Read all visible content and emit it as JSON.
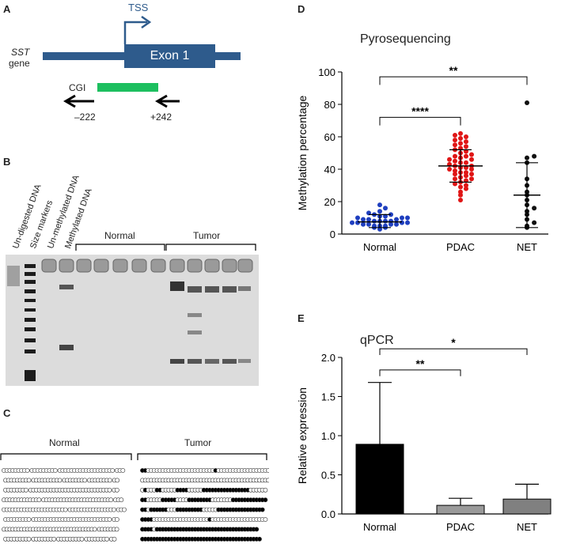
{
  "panel_a": {
    "letter": "A",
    "gene_italic": "SST",
    "gene_word": "gene",
    "tss": "TSS",
    "exon": "Exon 1",
    "cgi": "CGI",
    "primer_left": "–222",
    "primer_right": "+242",
    "colors": {
      "gene": "#2e5b8c",
      "cgi": "#1dbf5f",
      "tss": "#2e5b8c"
    }
  },
  "panel_b": {
    "letter": "B",
    "lane_labels": [
      "Un-digested DNA",
      "Size markers",
      "Un-methylated DNA",
      "Methylated DNA"
    ],
    "normal": "Normal",
    "tumor": "Tumor"
  },
  "panel_c": {
    "letter": "C",
    "normal": "Normal",
    "tumor": "Tumor",
    "normal_rows": [
      "ooooooooo.ooooooooo.ooooooooooooooooooo.ooo",
      ".ooooooooo.oooooooooo.oooooooo.oooooooo.oo",
      ".oooooooo.oooooooooooooooooooooooooooo.oo",
      "ooooooooooooo.oooooooooooooooooooooooo.ooo",
      "oooooooooooooooooooooo.oooooooooooooooo.ooo",
      ".ooooooooo.ooooooooooooooooooooooooooo.oo",
      "oooooooooooooooooooooooooooooooo.ooooooo",
      ".ooooooooo.oooooooo.ooooooooo.oooooooo.oo"
    ],
    "tumor_rows": [
      "XXoooooooooooooooooooooooXooooooooooooooooooo",
      "oooooooooooooooooooooooooooooooooooooooooooo",
      "oXoooXXoooooXXXXoooooXXXXXXXXXXXXXXXXoooooo",
      "XXoooooXXXXXooooXXXXXXXXoooooooXXXXXXXXXXXX",
      "XXoXXXXXXoooXXXXXXXXXoooooXXXXXXXXXXXXXXXX",
      "XXXXoooooooooooooooooooXooooooooooooooooooo",
      "XXXXoXXXXXXXXXXXXXXXXXXXXXXXXXXXXXXXXXXX",
      "XXXXXXXXXXXXXXXXXXXXXXXXXXXXXXXXXXXXXXXXX"
    ]
  },
  "panel_d": {
    "letter": "D",
    "title": "Pyrosequencing",
    "ylabel": "Methylation percentage",
    "sig1": "****",
    "sig2": "**",
    "yticks": [
      "0",
      "20",
      "40",
      "60",
      "80",
      "100"
    ]
  },
  "panel_e": {
    "letter": "E",
    "title": "qPCR",
    "ylabel": "Relative expression",
    "sig1": "**",
    "sig2": "*",
    "yticks": [
      "0.0",
      "0.5",
      "1.0",
      "1.5",
      "2.0"
    ]
  },
  "chart_data": [
    {
      "type": "scatter",
      "title": "Pyrosequencing",
      "ylabel": "Methylation percentage",
      "ylim": [
        0,
        100
      ],
      "categories": [
        "Normal",
        "PDAC",
        "NET"
      ],
      "colors": [
        "#1f3fbf",
        "#e01515",
        "#111111"
      ],
      "series": [
        {
          "name": "Normal",
          "mean": 7.5,
          "sd_low": 4,
          "sd_high": 12,
          "values": [
            3,
            4,
            4,
            5,
            5,
            5,
            6,
            6,
            6,
            6,
            7,
            7,
            7,
            7,
            8,
            8,
            8,
            8,
            9,
            9,
            9,
            10,
            10,
            10,
            11,
            11,
            12,
            12,
            13,
            14,
            16,
            18
          ]
        },
        {
          "name": "PDAC",
          "mean": 42,
          "sd_low": 32,
          "sd_high": 52,
          "values": [
            21,
            24,
            26,
            28,
            29,
            30,
            31,
            32,
            33,
            34,
            34,
            35,
            36,
            37,
            37,
            38,
            38,
            39,
            40,
            40,
            41,
            41,
            42,
            42,
            43,
            44,
            44,
            45,
            46,
            46,
            47,
            48,
            48,
            49,
            50,
            51,
            52,
            53,
            54,
            55,
            56,
            57,
            58,
            59,
            60,
            61,
            62
          ]
        },
        {
          "name": "NET",
          "mean": 24,
          "sd_low": 4,
          "sd_high": 44,
          "values": [
            4,
            5,
            7,
            9,
            12,
            14,
            16,
            18,
            21,
            24,
            26,
            30,
            34,
            44,
            47,
            48,
            81
          ]
        }
      ]
    },
    {
      "type": "bar",
      "title": "qPCR",
      "ylabel": "Relative expression",
      "ylim": [
        0,
        2.0
      ],
      "categories": [
        "Normal",
        "PDAC",
        "NET"
      ],
      "values": [
        0.89,
        0.11,
        0.19
      ],
      "errors": [
        0.79,
        0.09,
        0.19
      ],
      "colors": [
        "#000000",
        "#9a9a9a",
        "#808080"
      ]
    }
  ]
}
